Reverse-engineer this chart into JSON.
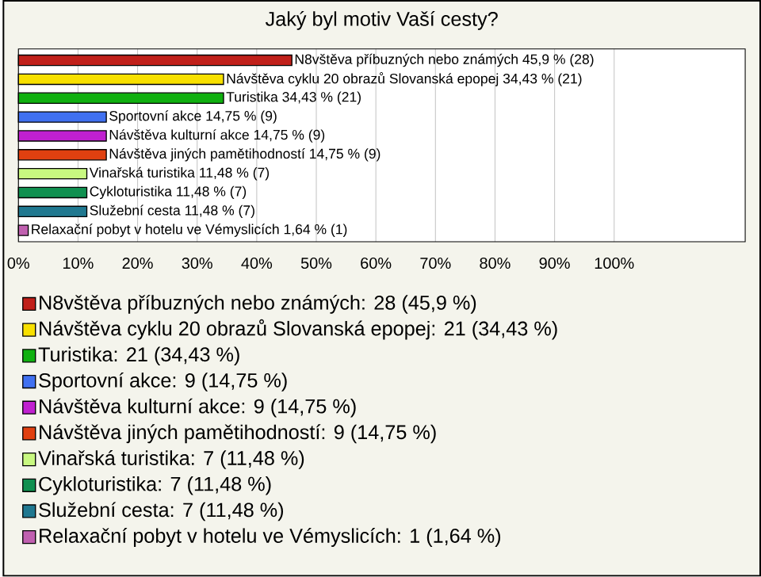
{
  "chart_data": {
    "type": "bar",
    "orientation": "horizontal",
    "title": "Jaký byl motiv Vaší cesty?",
    "categories": [
      null,
      null,
      null,
      null,
      null,
      null,
      null,
      null,
      null,
      null
    ],
    "series": [
      {
        "name": "N8vštěva příbuzných nebo známých: 28 (45,9 %)",
        "color": "#c0201a",
        "values": [
          45.9,
          null,
          null,
          null,
          null,
          null,
          null,
          null,
          null,
          null
        ],
        "value_labels": [
          "N8vštěva příbuzných nebo známých 45,9 % (28)",
          null,
          null,
          null,
          null,
          null,
          null,
          null,
          null,
          null
        ]
      },
      {
        "name": "Návštěva cyklu 20 obrazů Slovanská epopej: 21 (34,43 %)",
        "color": "#f8e000",
        "values": [
          null,
          34.43,
          null,
          null,
          null,
          null,
          null,
          null,
          null,
          null
        ],
        "value_labels": [
          null,
          "Návštěva cyklu 20 obrazů Slovanská epopej 34,43 % (21)",
          null,
          null,
          null,
          null,
          null,
          null,
          null,
          null
        ]
      },
      {
        "name": "Turistika: 21 (34,43 %)",
        "color": "#10b010",
        "values": [
          null,
          null,
          34.43,
          null,
          null,
          null,
          null,
          null,
          null,
          null
        ],
        "value_labels": [
          null,
          null,
          "Turistika 34,43 % (21)",
          null,
          null,
          null,
          null,
          null,
          null,
          null
        ]
      },
      {
        "name": "Sportovní akce: 9 (14,75 %)",
        "color": "#4070f0",
        "values": [
          null,
          null,
          null,
          14.75,
          null,
          null,
          null,
          null,
          null,
          null
        ],
        "value_labels": [
          null,
          null,
          null,
          "Sportovní akce 14,75 % (9)",
          null,
          null,
          null,
          null,
          null,
          null
        ]
      },
      {
        "name": "Návštěva kulturní akce: 9 (14,75 %)",
        "color": "#c020d0",
        "values": [
          null,
          null,
          null,
          null,
          14.75,
          null,
          null,
          null,
          null,
          null
        ],
        "value_labels": [
          null,
          null,
          null,
          null,
          "Návštěva kulturní akce 14,75 % (9)",
          null,
          null,
          null,
          null,
          null
        ]
      },
      {
        "name": "Návštěva jiných pamětihodností: 9 (14,75 %)",
        "color": "#e04010",
        "values": [
          null,
          null,
          null,
          null,
          null,
          14.75,
          null,
          null,
          null,
          null
        ],
        "value_labels": [
          null,
          null,
          null,
          null,
          null,
          "Návštěva jiných pamětihodností 14,75 % (9)",
          null,
          null,
          null,
          null
        ]
      },
      {
        "name": "Vinařská turistika: 7 (11,48 %)",
        "color": "#c8f880",
        "values": [
          null,
          null,
          null,
          null,
          null,
          null,
          11.48,
          null,
          null,
          null
        ],
        "value_labels": [
          null,
          null,
          null,
          null,
          null,
          null,
          "Vinařská turistika 11,48 % (7)",
          null,
          null,
          null
        ]
      },
      {
        "name": "Cykloturistika: 7 (11,48 %)",
        "color": "#109050",
        "values": [
          null,
          null,
          null,
          null,
          null,
          null,
          null,
          11.48,
          null,
          null
        ],
        "value_labels": [
          null,
          null,
          null,
          null,
          null,
          null,
          null,
          "Cykloturistika 11,48 % (7)",
          null,
          null
        ]
      },
      {
        "name": "Služební cesta: 7 (11,48 %)",
        "color": "#207890",
        "values": [
          null,
          null,
          null,
          null,
          null,
          null,
          null,
          null,
          11.48,
          null
        ],
        "value_labels": [
          null,
          null,
          null,
          null,
          null,
          null,
          null,
          null,
          "Služební cesta 11,48 % (7)",
          null
        ]
      },
      {
        "name": "Relaxační pobyt v hotelu ve Vémyslicích: 1 (1,64 %)",
        "color": "#c060b0",
        "values": [
          null,
          null,
          null,
          null,
          null,
          null,
          null,
          null,
          null,
          1.64
        ],
        "value_labels": [
          null,
          null,
          null,
          null,
          null,
          null,
          null,
          null,
          null,
          "Relaxační pobyt v hotelu ve Vémyslicích 1,64 % (1)"
        ]
      }
    ],
    "xlim": [
      0,
      122
    ],
    "xticks": [
      {
        "value": 0,
        "label": "0%"
      },
      {
        "value": 10,
        "label": "10%"
      },
      {
        "value": 20,
        "label": "20%"
      },
      {
        "value": 30,
        "label": "30%"
      },
      {
        "value": 40,
        "label": "40%"
      },
      {
        "value": 50,
        "label": "50%"
      },
      {
        "value": 60,
        "label": "60%"
      },
      {
        "value": 70,
        "label": "70%"
      },
      {
        "value": 80,
        "label": "80%"
      },
      {
        "value": 90,
        "label": "90%"
      },
      {
        "value": 100,
        "label": "100%"
      }
    ],
    "grid": "x",
    "legend": "bottom"
  }
}
